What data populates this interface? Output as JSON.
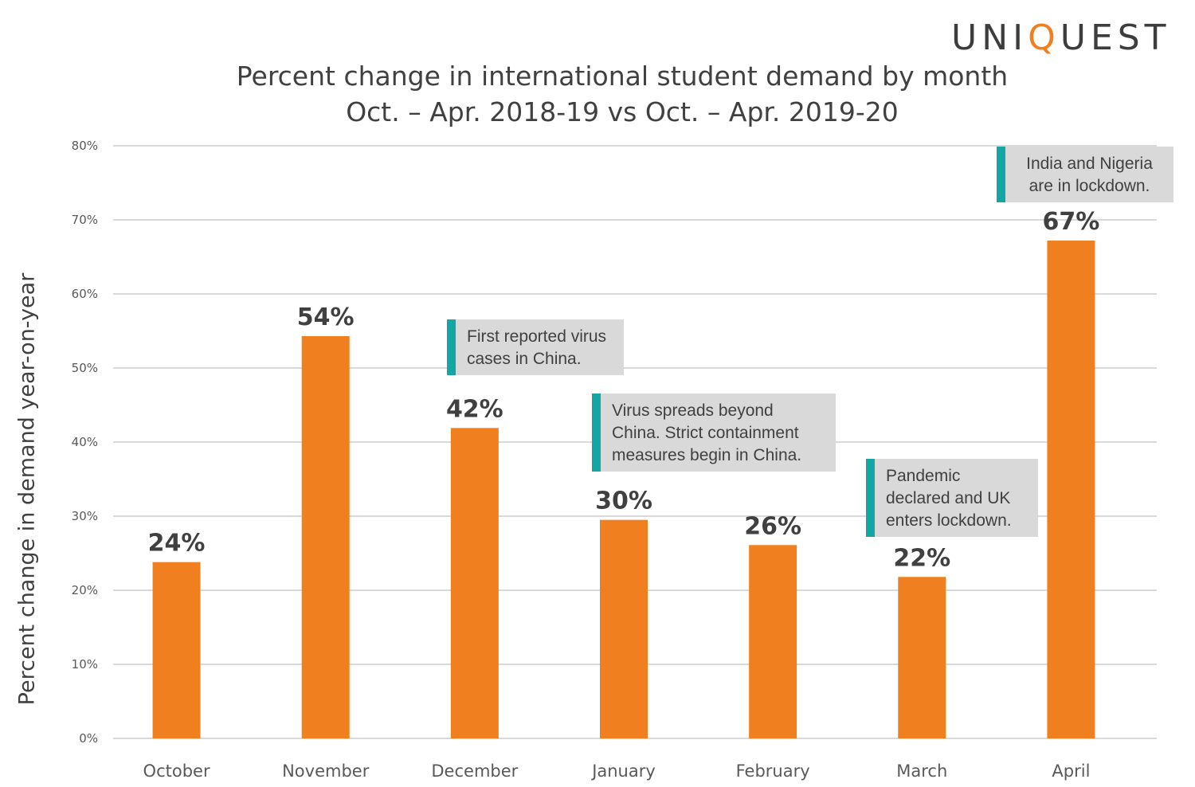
{
  "logo": {
    "text": "UNIQUEST"
  },
  "chart_data": {
    "type": "bar",
    "title": "Percent change in international student demand by month",
    "subtitle": "Oct. – Apr. 2018-19 vs Oct. – Apr. 2019-20",
    "xlabel": "",
    "ylabel": "Percent change in demand year-on-year",
    "ylim": [
      0,
      80
    ],
    "yticks": [
      "0%",
      "10%",
      "20%",
      "30%",
      "40%",
      "50%",
      "60%",
      "70%",
      "80%"
    ],
    "grid": true,
    "categories": [
      "October",
      "November",
      "December",
      "January",
      "February",
      "March",
      "April"
    ],
    "values": [
      23.8,
      54.3,
      41.9,
      29.5,
      26.1,
      21.8,
      67.2
    ],
    "data_labels": [
      "24%",
      "54%",
      "42%",
      "30%",
      "26%",
      "22%",
      "67%"
    ],
    "bar_color": "#f07f1f",
    "annotations": [
      {
        "category": "December",
        "lines": [
          "First reported virus",
          "cases in China."
        ]
      },
      {
        "category": "January",
        "lines": [
          "Virus spreads beyond",
          "China. Strict containment",
          "measures begin in China."
        ]
      },
      {
        "category": "March",
        "lines": [
          "Pandemic",
          "declared and UK",
          "enters lockdown."
        ]
      },
      {
        "category": "April",
        "lines": [
          "India and Nigeria",
          "are in lockdown."
        ]
      }
    ],
    "annotation_accent": "#14a5a5"
  }
}
